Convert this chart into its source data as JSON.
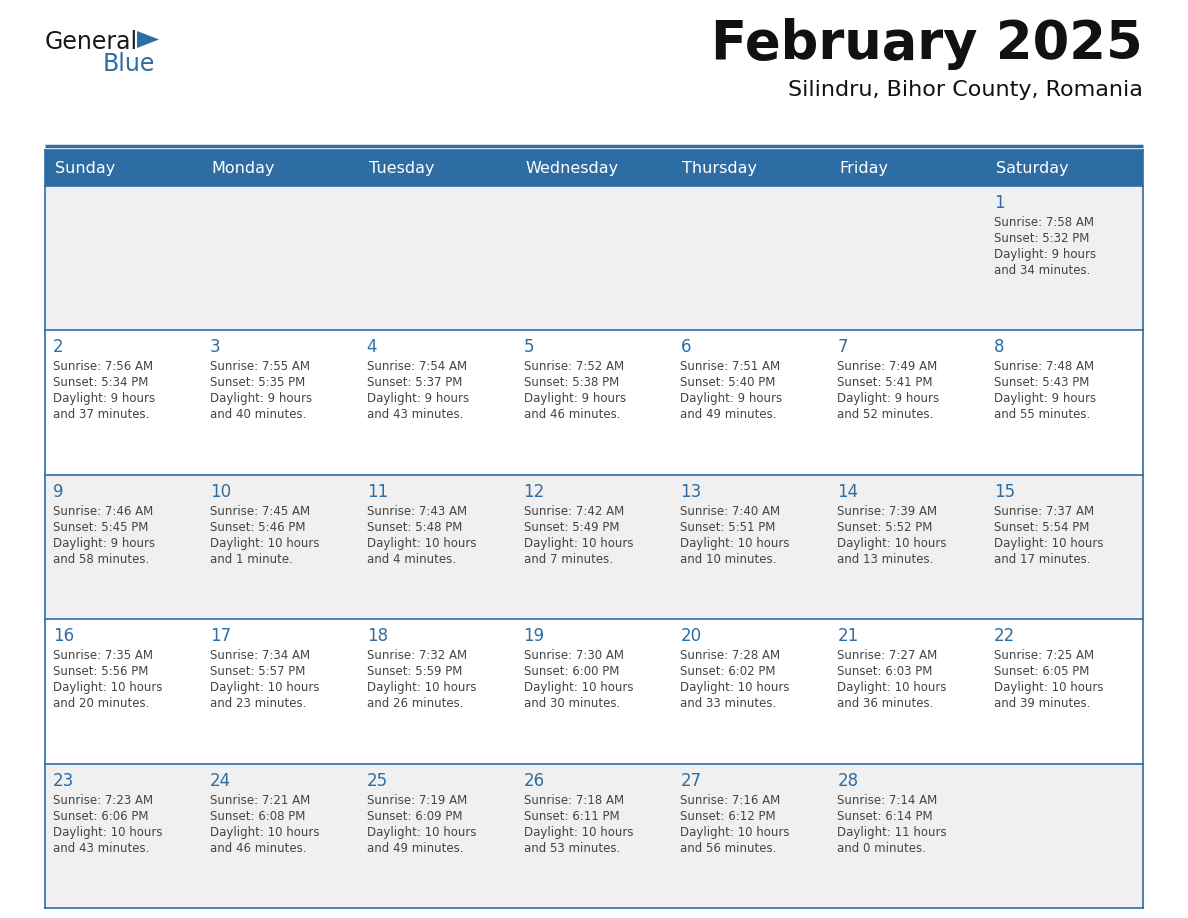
{
  "title": "February 2025",
  "subtitle": "Silindru, Bihor County, Romania",
  "header_bg": "#2E6DA4",
  "header_text_color": "#FFFFFF",
  "cell_bg_odd": "#F0F0F0",
  "cell_bg_even": "#FFFFFF",
  "day_number_color": "#2E6DA4",
  "cell_text_color": "#444444",
  "border_color": "#2E6DA4",
  "days_of_week": [
    "Sunday",
    "Monday",
    "Tuesday",
    "Wednesday",
    "Thursday",
    "Friday",
    "Saturday"
  ],
  "weeks": [
    [
      {
        "day": "",
        "info": ""
      },
      {
        "day": "",
        "info": ""
      },
      {
        "day": "",
        "info": ""
      },
      {
        "day": "",
        "info": ""
      },
      {
        "day": "",
        "info": ""
      },
      {
        "day": "",
        "info": ""
      },
      {
        "day": "1",
        "info": "Sunrise: 7:58 AM\nSunset: 5:32 PM\nDaylight: 9 hours\nand 34 minutes."
      }
    ],
    [
      {
        "day": "2",
        "info": "Sunrise: 7:56 AM\nSunset: 5:34 PM\nDaylight: 9 hours\nand 37 minutes."
      },
      {
        "day": "3",
        "info": "Sunrise: 7:55 AM\nSunset: 5:35 PM\nDaylight: 9 hours\nand 40 minutes."
      },
      {
        "day": "4",
        "info": "Sunrise: 7:54 AM\nSunset: 5:37 PM\nDaylight: 9 hours\nand 43 minutes."
      },
      {
        "day": "5",
        "info": "Sunrise: 7:52 AM\nSunset: 5:38 PM\nDaylight: 9 hours\nand 46 minutes."
      },
      {
        "day": "6",
        "info": "Sunrise: 7:51 AM\nSunset: 5:40 PM\nDaylight: 9 hours\nand 49 minutes."
      },
      {
        "day": "7",
        "info": "Sunrise: 7:49 AM\nSunset: 5:41 PM\nDaylight: 9 hours\nand 52 minutes."
      },
      {
        "day": "8",
        "info": "Sunrise: 7:48 AM\nSunset: 5:43 PM\nDaylight: 9 hours\nand 55 minutes."
      }
    ],
    [
      {
        "day": "9",
        "info": "Sunrise: 7:46 AM\nSunset: 5:45 PM\nDaylight: 9 hours\nand 58 minutes."
      },
      {
        "day": "10",
        "info": "Sunrise: 7:45 AM\nSunset: 5:46 PM\nDaylight: 10 hours\nand 1 minute."
      },
      {
        "day": "11",
        "info": "Sunrise: 7:43 AM\nSunset: 5:48 PM\nDaylight: 10 hours\nand 4 minutes."
      },
      {
        "day": "12",
        "info": "Sunrise: 7:42 AM\nSunset: 5:49 PM\nDaylight: 10 hours\nand 7 minutes."
      },
      {
        "day": "13",
        "info": "Sunrise: 7:40 AM\nSunset: 5:51 PM\nDaylight: 10 hours\nand 10 minutes."
      },
      {
        "day": "14",
        "info": "Sunrise: 7:39 AM\nSunset: 5:52 PM\nDaylight: 10 hours\nand 13 minutes."
      },
      {
        "day": "15",
        "info": "Sunrise: 7:37 AM\nSunset: 5:54 PM\nDaylight: 10 hours\nand 17 minutes."
      }
    ],
    [
      {
        "day": "16",
        "info": "Sunrise: 7:35 AM\nSunset: 5:56 PM\nDaylight: 10 hours\nand 20 minutes."
      },
      {
        "day": "17",
        "info": "Sunrise: 7:34 AM\nSunset: 5:57 PM\nDaylight: 10 hours\nand 23 minutes."
      },
      {
        "day": "18",
        "info": "Sunrise: 7:32 AM\nSunset: 5:59 PM\nDaylight: 10 hours\nand 26 minutes."
      },
      {
        "day": "19",
        "info": "Sunrise: 7:30 AM\nSunset: 6:00 PM\nDaylight: 10 hours\nand 30 minutes."
      },
      {
        "day": "20",
        "info": "Sunrise: 7:28 AM\nSunset: 6:02 PM\nDaylight: 10 hours\nand 33 minutes."
      },
      {
        "day": "21",
        "info": "Sunrise: 7:27 AM\nSunset: 6:03 PM\nDaylight: 10 hours\nand 36 minutes."
      },
      {
        "day": "22",
        "info": "Sunrise: 7:25 AM\nSunset: 6:05 PM\nDaylight: 10 hours\nand 39 minutes."
      }
    ],
    [
      {
        "day": "23",
        "info": "Sunrise: 7:23 AM\nSunset: 6:06 PM\nDaylight: 10 hours\nand 43 minutes."
      },
      {
        "day": "24",
        "info": "Sunrise: 7:21 AM\nSunset: 6:08 PM\nDaylight: 10 hours\nand 46 minutes."
      },
      {
        "day": "25",
        "info": "Sunrise: 7:19 AM\nSunset: 6:09 PM\nDaylight: 10 hours\nand 49 minutes."
      },
      {
        "day": "26",
        "info": "Sunrise: 7:18 AM\nSunset: 6:11 PM\nDaylight: 10 hours\nand 53 minutes."
      },
      {
        "day": "27",
        "info": "Sunrise: 7:16 AM\nSunset: 6:12 PM\nDaylight: 10 hours\nand 56 minutes."
      },
      {
        "day": "28",
        "info": "Sunrise: 7:14 AM\nSunset: 6:14 PM\nDaylight: 11 hours\nand 0 minutes."
      },
      {
        "day": "",
        "info": ""
      }
    ]
  ],
  "logo_text1": "General",
  "logo_text2": "Blue",
  "logo_color1": "#1a1a1a",
  "logo_color2": "#2E6DA4",
  "fig_width": 11.88,
  "fig_height": 9.18,
  "dpi": 100
}
